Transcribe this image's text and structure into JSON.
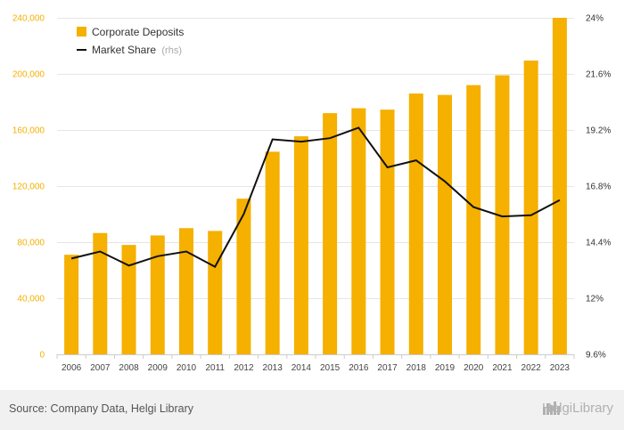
{
  "chart_data": {
    "type": "bar",
    "categories": [
      "2006",
      "2007",
      "2008",
      "2009",
      "2010",
      "2011",
      "2012",
      "2013",
      "2014",
      "2015",
      "2016",
      "2017",
      "2018",
      "2019",
      "2020",
      "2021",
      "2022",
      "2023"
    ],
    "series": [
      {
        "name": "Corporate Deposits",
        "kind": "bar",
        "axis": "left",
        "color": "#f5b000",
        "values": [
          71000,
          86500,
          78000,
          84800,
          90000,
          88000,
          111000,
          144500,
          155500,
          172000,
          175500,
          174500,
          186000,
          185000,
          192000,
          199000,
          209500,
          240000
        ]
      },
      {
        "name": "Market Share",
        "name_suffix": "(rhs)",
        "kind": "line",
        "axis": "right",
        "color": "#111111",
        "values": [
          13.7,
          14.0,
          13.4,
          13.8,
          14.0,
          13.35,
          15.6,
          18.8,
          18.7,
          18.85,
          19.3,
          17.6,
          17.9,
          17.0,
          15.9,
          15.5,
          15.55,
          16.2
        ]
      }
    ],
    "y_left": {
      "ylim": [
        0,
        240000
      ],
      "ticks": [
        "0",
        "40,000",
        "80,000",
        "120,000",
        "160,000",
        "200,000",
        "240,000"
      ]
    },
    "y_right": {
      "ylim": [
        9.6,
        24
      ],
      "ticks": [
        "9.6%",
        "12%",
        "14.4%",
        "16.8%",
        "19.2%",
        "21.6%",
        "24%"
      ]
    },
    "grid": true,
    "legend_position": "top-left"
  },
  "footer": {
    "source": "Source: Company Data, Helgi Library",
    "brand": "HelgiLibrary"
  },
  "icons": {
    "brand_icon": "city-skyline-icon"
  }
}
